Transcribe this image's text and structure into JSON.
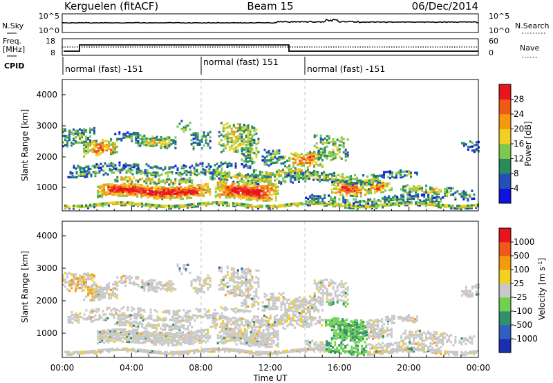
{
  "header": {
    "station": "Kerguelen (fitACF)",
    "beam": "Beam 15",
    "date": "06/Dec/2014"
  },
  "panels": {
    "nsky": {
      "left_label": "N.Sky",
      "right_label": "N.Search",
      "left_ticks": [
        "10^5",
        "10^0"
      ],
      "right_ticks": [
        "10^5",
        "10^0"
      ]
    },
    "freq": {
      "left_label_1": "Freq.",
      "left_label_2": "[MHz]",
      "right_label": "Nave",
      "left_ticks": [
        "18",
        "8"
      ],
      "right_ticks": [
        "60",
        "0"
      ]
    },
    "cpid": {
      "label": "CPID",
      "segments": [
        {
          "text": "normal (fast) -151",
          "start_h": 0
        },
        {
          "text": "normal (fast) 151",
          "start_h": 8.0
        },
        {
          "text": "normal (fast) -151",
          "start_h": 14.0
        }
      ]
    }
  },
  "chart_data": [
    {
      "type": "heatmap",
      "name": "power",
      "ylabel": "Slant Range [km]",
      "yticks": [
        "1000",
        "2000",
        "3000",
        "4000"
      ],
      "colorbar": {
        "label": "Power [dB]",
        "ticks": [
          "4",
          "8",
          "12",
          "16",
          "20",
          "24",
          "28"
        ],
        "colors": [
          "#1010e0",
          "#2050b8",
          "#2a8c5a",
          "#7ec850",
          "#f0d020",
          "#f59a10",
          "#f05a18",
          "#e8141e"
        ]
      }
    },
    {
      "type": "heatmap",
      "name": "velocity",
      "ylabel": "Slant Range [km]",
      "yticks": [
        "1000",
        "2000",
        "3000",
        "4000"
      ],
      "colorbar": {
        "label": "Velocity [m s-1]",
        "ticks": [
          "1000",
          "500",
          "100",
          "25",
          "-25",
          "-100",
          "-500",
          "-1000"
        ],
        "colors": [
          "#1a2fb0",
          "#2f5fc0",
          "#30906a",
          "#70d050",
          "#c8c8c8",
          "#f5d020",
          "#f59a10",
          "#f05a18",
          "#e8141e"
        ]
      }
    }
  ],
  "xaxis": {
    "label": "Time UT",
    "ticks": [
      "00:00",
      "04:00",
      "08:00",
      "12:00",
      "16:00",
      "20:00",
      "00:00"
    ]
  },
  "colors": {
    "axes": "#000000",
    "guide": "#c8c8c8"
  }
}
